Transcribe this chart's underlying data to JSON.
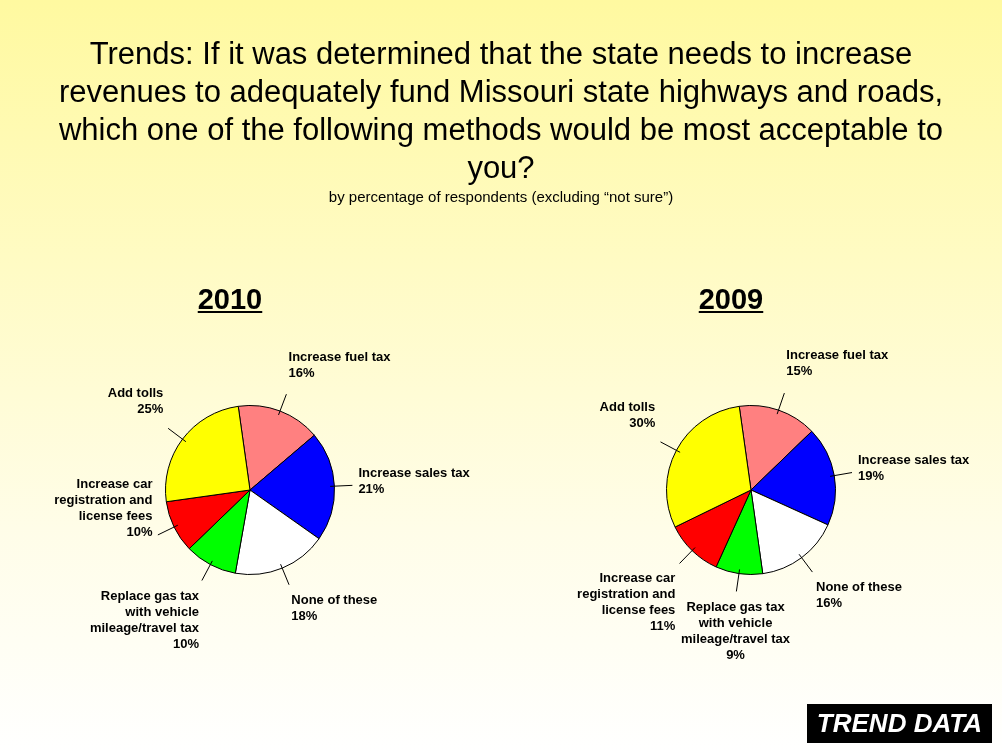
{
  "chart_data": [
    {
      "type": "other",
      "title": "Trends: If it was determined that the state needs to increase revenues to adequately fund Missouri state highways and roads, which one of the following methods would be most acceptable to you?",
      "subtitle": "by percentage of respondents (excluding “not sure”)",
      "annotations": [
        "TREND DATA"
      ]
    },
    {
      "type": "pie",
      "title": "2010",
      "categories": [
        "Increase fuel tax",
        "Increase sales tax",
        "None of these",
        "Replace gas tax with vehicle mileage/travel tax",
        "Increase car registration and license fees",
        "Add tolls"
      ],
      "values": [
        16,
        21,
        18,
        10,
        10,
        25
      ],
      "value_labels": [
        "16%",
        "21%",
        "18%",
        "10%",
        "10%",
        "25%"
      ],
      "data_labels": true,
      "colors": [
        "#ff8080",
        "#0000ff",
        "#ffffff",
        "#00ff00",
        "#ff0000",
        "#ffff00"
      ]
    },
    {
      "type": "pie",
      "title": "2009",
      "categories": [
        "Increase fuel tax",
        "Increase sales tax",
        "None of these",
        "Replace gas tax with vehicle mileage/travel tax",
        "Increase car registration and license fees",
        "Add tolls"
      ],
      "values": [
        15,
        19,
        16,
        9,
        11,
        30
      ],
      "value_labels": [
        "15%",
        "19%",
        "16%",
        "9%",
        "11%",
        "30%"
      ],
      "data_labels": true,
      "colors": [
        "#ff8080",
        "#0000ff",
        "#ffffff",
        "#00ff00",
        "#ff0000",
        "#ffff00"
      ]
    }
  ]
}
